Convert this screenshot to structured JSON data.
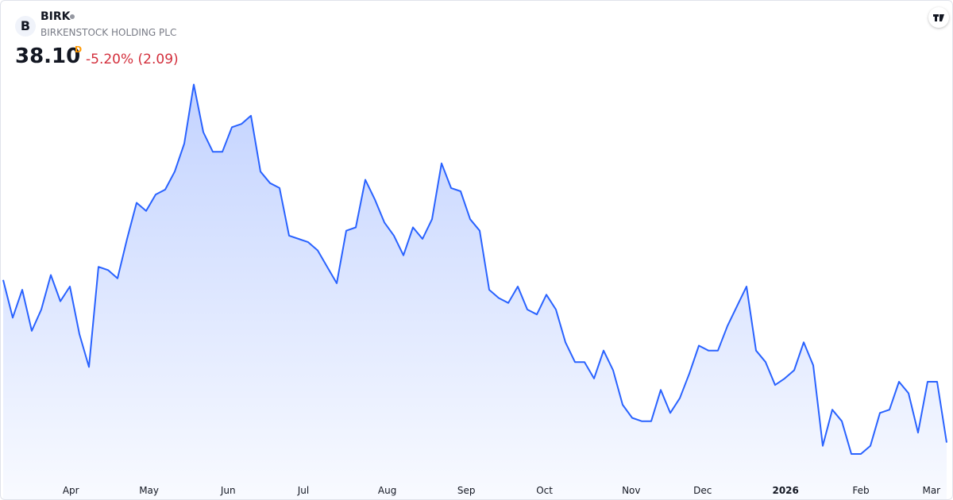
{
  "header": {
    "logo": "B",
    "symbol": "BIRK",
    "name": "BIRKENSTOCK HOLDING PLC",
    "price": "38.10",
    "interval": "D",
    "change": "-5.20% (2.09)"
  },
  "chart_data": {
    "type": "area",
    "color": "#2962ff",
    "values": [
      48.0,
      45.7,
      47.4,
      44.9,
      46.2,
      48.3,
      46.7,
      47.6,
      44.7,
      42.7,
      48.8,
      48.6,
      48.1,
      50.5,
      52.7,
      52.2,
      53.2,
      53.5,
      54.6,
      56.3,
      59.9,
      57.0,
      55.8,
      55.8,
      57.3,
      57.5,
      58.0,
      54.6,
      53.9,
      53.6,
      50.7,
      50.5,
      50.3,
      49.8,
      48.8,
      47.8,
      51.0,
      51.2,
      54.1,
      52.9,
      51.5,
      50.7,
      49.5,
      51.2,
      50.5,
      51.7,
      55.1,
      53.6,
      53.4,
      51.7,
      51.0,
      47.4,
      46.9,
      46.6,
      47.6,
      46.2,
      45.9,
      47.1,
      46.2,
      44.2,
      43.0,
      43.0,
      42.0,
      43.7,
      42.5,
      40.4,
      39.6,
      39.4,
      39.4,
      41.3,
      39.9,
      40.8,
      42.3,
      44.0,
      43.7,
      43.7,
      45.2,
      46.4,
      47.6,
      43.7,
      43.0,
      41.6,
      42.0,
      42.5,
      44.2,
      42.8,
      37.9,
      40.1,
      39.4,
      37.4,
      37.4,
      37.9,
      39.9,
      40.1,
      41.8,
      41.1,
      38.7,
      41.8,
      41.8,
      38.1
    ],
    "xlim": [
      0,
      99
    ],
    "xticks": [
      {
        "value": 7.1,
        "label": "Apr"
      },
      {
        "value": 15.3,
        "label": "May"
      },
      {
        "value": 23.6,
        "label": "Jun"
      },
      {
        "value": 31.5,
        "label": "Jul"
      },
      {
        "value": 40.3,
        "label": "Aug"
      },
      {
        "value": 48.6,
        "label": "Sep"
      },
      {
        "value": 56.8,
        "label": "Oct"
      },
      {
        "value": 65.9,
        "label": "Nov"
      },
      {
        "value": 73.4,
        "label": "Dec"
      },
      {
        "value": 82.1,
        "label": "2026"
      },
      {
        "value": 90.0,
        "label": "Feb"
      },
      {
        "value": 97.4,
        "label": "Mar"
      }
    ],
    "ylim": [
      36,
      65
    ]
  }
}
